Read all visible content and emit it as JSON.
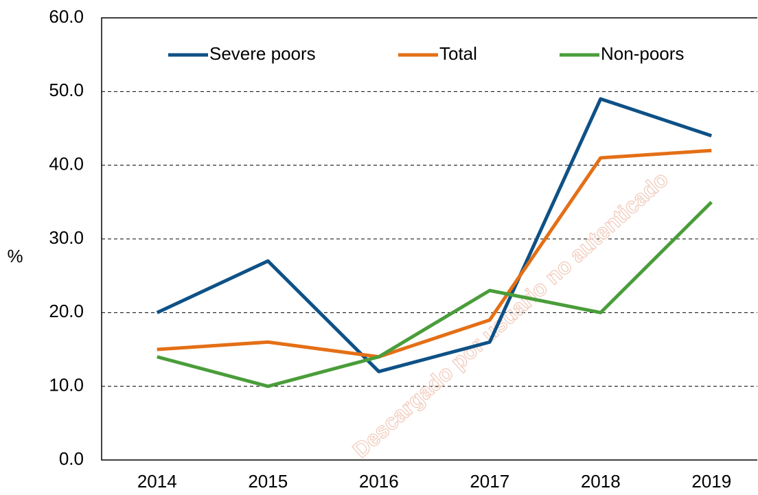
{
  "chart_data": {
    "type": "line",
    "y_label": "%",
    "watermark": "Descargado por usuario no autenticado",
    "categories": [
      "2014",
      "2015",
      "2016",
      "2017",
      "2018",
      "2019"
    ],
    "series": [
      {
        "name": "Severe poors",
        "color": "#0e5186",
        "values": [
          20,
          27,
          12,
          16,
          49,
          44
        ]
      },
      {
        "name": "Total",
        "color": "#e46f16",
        "values": [
          15,
          16,
          14,
          19,
          41,
          42
        ]
      },
      {
        "name": "Non-poors",
        "color": "#4a9d3a",
        "values": [
          14,
          10,
          14,
          23,
          20,
          35
        ]
      }
    ],
    "ylim": [
      0,
      60
    ],
    "yticks": [
      {
        "value": 0,
        "label": "0.0"
      },
      {
        "value": 10,
        "label": "10.0"
      },
      {
        "value": 20,
        "label": "20.0"
      },
      {
        "value": 30,
        "label": "30.0"
      },
      {
        "value": 40,
        "label": "40.0"
      },
      {
        "value": 50,
        "label": "50.0"
      },
      {
        "value": 60,
        "label": "60.0"
      }
    ],
    "grid": true,
    "legend": "top"
  }
}
